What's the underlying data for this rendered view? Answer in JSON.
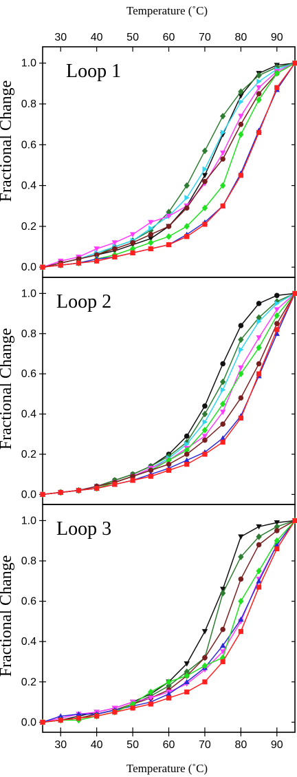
{
  "figure": {
    "top_xlabel": "Temperature (˚C)",
    "bottom_xlabel": "Temperature (˚C)"
  },
  "chart_data": [
    {
      "type": "line",
      "title": "Loop 1",
      "xlabel": "Temperature (˚C)",
      "ylabel": "Fractional Change",
      "xlim": [
        25,
        95
      ],
      "ylim": [
        -0.05,
        1.08
      ],
      "xticks": [
        30,
        40,
        50,
        60,
        70,
        80,
        90
      ],
      "yticks": [
        0.0,
        0.2,
        0.4,
        0.6,
        0.8,
        1.0
      ],
      "grid": false,
      "x": [
        25,
        30,
        35,
        40,
        45,
        50,
        55,
        60,
        65,
        70,
        75,
        80,
        85,
        90,
        95
      ],
      "series": [
        {
          "color": "#111111",
          "marker": "triangle-down",
          "values": [
            0.0,
            0.02,
            0.04,
            0.06,
            0.08,
            0.11,
            0.14,
            0.2,
            0.3,
            0.45,
            0.65,
            0.84,
            0.95,
            0.99,
            1.0
          ]
        },
        {
          "color": "#2e7d32",
          "marker": "diamond",
          "values": [
            0.0,
            0.02,
            0.04,
            0.06,
            0.1,
            0.13,
            0.18,
            0.27,
            0.4,
            0.57,
            0.74,
            0.86,
            0.94,
            0.98,
            1.0
          ]
        },
        {
          "color": "#33d6f0",
          "marker": "triangle-right",
          "values": [
            0.0,
            0.02,
            0.04,
            0.07,
            0.1,
            0.13,
            0.19,
            0.25,
            0.34,
            0.48,
            0.66,
            0.81,
            0.91,
            0.97,
            1.0
          ]
        },
        {
          "color": "#ff3cff",
          "marker": "triangle-down",
          "values": [
            0.0,
            0.03,
            0.05,
            0.09,
            0.12,
            0.16,
            0.22,
            0.25,
            0.3,
            0.41,
            0.56,
            0.74,
            0.88,
            0.96,
            1.0
          ]
        },
        {
          "color": "#7a1f1f",
          "marker": "circle",
          "values": [
            0.0,
            0.02,
            0.04,
            0.06,
            0.09,
            0.12,
            0.16,
            0.2,
            0.29,
            0.42,
            0.53,
            0.7,
            0.85,
            0.95,
            1.0
          ]
        },
        {
          "color": "#22e022",
          "marker": "diamond",
          "values": [
            0.0,
            0.01,
            0.02,
            0.04,
            0.06,
            0.09,
            0.12,
            0.15,
            0.2,
            0.29,
            0.4,
            0.65,
            0.82,
            0.95,
            1.0
          ]
        },
        {
          "color": "#2a2ad8",
          "marker": "triangle-up",
          "values": [
            0.0,
            0.01,
            0.02,
            0.04,
            0.05,
            0.07,
            0.09,
            0.11,
            0.16,
            0.22,
            0.3,
            0.46,
            0.67,
            0.87,
            1.0
          ]
        },
        {
          "color": "#ff2020",
          "marker": "square",
          "values": [
            0.0,
            0.01,
            0.02,
            0.03,
            0.05,
            0.07,
            0.09,
            0.11,
            0.15,
            0.21,
            0.3,
            0.45,
            0.66,
            0.88,
            1.0
          ]
        }
      ]
    },
    {
      "type": "line",
      "title": "Loop 2",
      "xlabel": "Temperature (˚C)",
      "ylabel": "Fractional Change",
      "xlim": [
        25,
        95
      ],
      "ylim": [
        -0.05,
        1.08
      ],
      "xticks": [
        30,
        40,
        50,
        60,
        70,
        80,
        90
      ],
      "yticks": [
        0.0,
        0.2,
        0.4,
        0.6,
        0.8,
        1.0
      ],
      "grid": false,
      "x": [
        25,
        30,
        35,
        40,
        45,
        50,
        55,
        60,
        65,
        70,
        75,
        80,
        85,
        90,
        95
      ],
      "series": [
        {
          "color": "#111111",
          "marker": "circle",
          "values": [
            0.0,
            0.01,
            0.02,
            0.04,
            0.07,
            0.1,
            0.14,
            0.2,
            0.29,
            0.44,
            0.65,
            0.84,
            0.95,
            0.99,
            1.0
          ]
        },
        {
          "color": "#2e7d32",
          "marker": "diamond",
          "values": [
            0.0,
            0.01,
            0.02,
            0.04,
            0.07,
            0.1,
            0.14,
            0.19,
            0.26,
            0.4,
            0.56,
            0.77,
            0.88,
            0.96,
            1.0
          ]
        },
        {
          "color": "#33d6f0",
          "marker": "triangle-right",
          "values": [
            0.0,
            0.01,
            0.02,
            0.04,
            0.06,
            0.09,
            0.13,
            0.18,
            0.25,
            0.36,
            0.52,
            0.72,
            0.86,
            0.95,
            1.0
          ]
        },
        {
          "color": "#ff3cff",
          "marker": "triangle-down",
          "values": [
            0.0,
            0.01,
            0.02,
            0.04,
            0.06,
            0.09,
            0.13,
            0.17,
            0.23,
            0.29,
            0.41,
            0.63,
            0.78,
            0.92,
            1.0
          ]
        },
        {
          "color": "#22e022",
          "marker": "diamond",
          "values": [
            0.0,
            0.01,
            0.02,
            0.03,
            0.06,
            0.09,
            0.12,
            0.17,
            0.22,
            0.32,
            0.45,
            0.6,
            0.73,
            0.89,
            1.0
          ]
        },
        {
          "color": "#7a1f1f",
          "marker": "circle",
          "values": [
            0.0,
            0.01,
            0.02,
            0.04,
            0.06,
            0.09,
            0.12,
            0.15,
            0.2,
            0.27,
            0.35,
            0.48,
            0.65,
            0.85,
            1.0
          ]
        },
        {
          "color": "#2a2ad8",
          "marker": "triangle-up",
          "values": [
            0.0,
            0.01,
            0.02,
            0.03,
            0.05,
            0.07,
            0.1,
            0.13,
            0.17,
            0.21,
            0.28,
            0.39,
            0.59,
            0.8,
            1.0
          ]
        },
        {
          "color": "#ff2020",
          "marker": "square",
          "values": [
            0.0,
            0.01,
            0.02,
            0.03,
            0.05,
            0.07,
            0.09,
            0.12,
            0.15,
            0.2,
            0.26,
            0.38,
            0.6,
            0.82,
            1.0
          ]
        }
      ]
    },
    {
      "type": "line",
      "title": "Loop 3",
      "xlabel": "Temperature (˚C)",
      "ylabel": "Fractional Change",
      "xlim": [
        25,
        95
      ],
      "ylim": [
        -0.05,
        1.08
      ],
      "xticks": [
        30,
        40,
        50,
        60,
        70,
        80,
        90
      ],
      "yticks": [
        0.0,
        0.2,
        0.4,
        0.6,
        0.8,
        1.0
      ],
      "grid": false,
      "x": [
        25,
        30,
        35,
        40,
        45,
        50,
        55,
        60,
        65,
        70,
        75,
        80,
        85,
        90,
        95
      ],
      "series": [
        {
          "color": "#111111",
          "marker": "triangle-down",
          "values": [
            0.0,
            0.01,
            0.03,
            0.05,
            0.07,
            0.1,
            0.14,
            0.2,
            0.29,
            0.45,
            0.66,
            0.92,
            0.97,
            0.99,
            1.0
          ]
        },
        {
          "color": "#2e7d32",
          "marker": "diamond",
          "values": [
            0.0,
            0.01,
            0.02,
            0.04,
            0.06,
            0.09,
            0.13,
            0.18,
            0.25,
            0.32,
            0.64,
            0.82,
            0.92,
            0.97,
            1.0
          ]
        },
        {
          "color": "#7a1f1f",
          "marker": "circle",
          "values": [
            0.0,
            0.01,
            0.02,
            0.04,
            0.06,
            0.09,
            0.12,
            0.16,
            0.23,
            0.32,
            0.46,
            0.71,
            0.88,
            0.95,
            1.0
          ]
        },
        {
          "color": "#ff3cff",
          "marker": "triangle-down",
          "values": [
            0.0,
            0.02,
            0.04,
            0.05,
            0.07,
            0.1,
            0.12,
            0.15,
            0.19,
            0.26,
            0.35,
            0.5,
            0.71,
            0.88,
            1.0
          ]
        },
        {
          "color": "#2a2ad8",
          "marker": "triangle-up",
          "values": [
            0.0,
            0.03,
            0.04,
            0.04,
            0.06,
            0.08,
            0.1,
            0.14,
            0.2,
            0.27,
            0.38,
            0.51,
            0.7,
            0.88,
            1.0
          ]
        },
        {
          "color": "#22e022",
          "marker": "diamond",
          "values": [
            0.0,
            0.01,
            0.01,
            0.03,
            0.05,
            0.09,
            0.15,
            0.2,
            0.23,
            0.28,
            0.32,
            0.6,
            0.75,
            0.9,
            1.0
          ]
        },
        {
          "color": "#ff2020",
          "marker": "square",
          "values": [
            0.0,
            0.01,
            0.02,
            0.03,
            0.05,
            0.07,
            0.09,
            0.12,
            0.15,
            0.2,
            0.3,
            0.45,
            0.67,
            0.86,
            1.0
          ]
        }
      ]
    }
  ]
}
